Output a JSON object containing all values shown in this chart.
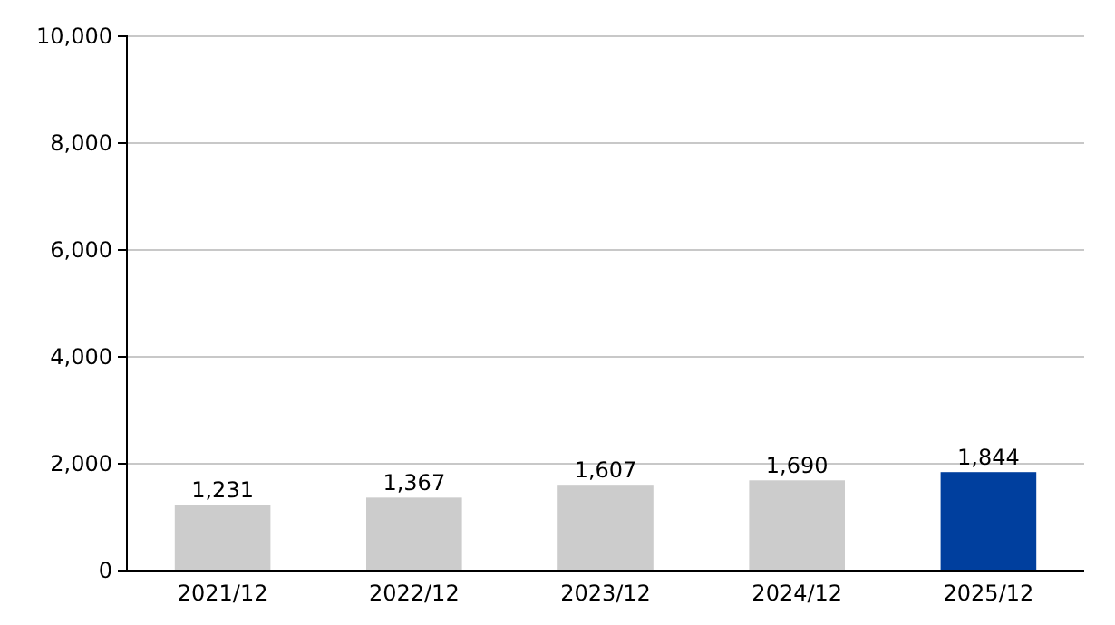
{
  "chart_data": {
    "type": "bar",
    "categories": [
      "2021/12",
      "2022/12",
      "2023/12",
      "2024/12",
      "2025/12"
    ],
    "values": [
      1231,
      1367,
      1607,
      1690,
      1844
    ],
    "colors": [
      "#cccccc",
      "#cccccc",
      "#cccccc",
      "#cccccc",
      "#003f9e"
    ],
    "ylim": [
      0,
      10000
    ],
    "yticks": [
      {
        "value": 0,
        "label": "0"
      },
      {
        "value": 2000,
        "label": "2,000"
      },
      {
        "value": 4000,
        "label": "4,000"
      },
      {
        "value": 6000,
        "label": "6,000"
      },
      {
        "value": 8000,
        "label": "8,000"
      },
      {
        "value": 10000,
        "label": "10,000"
      }
    ],
    "value_labels": [
      "1,231",
      "1,367",
      "1,607",
      "1,690",
      "1,844"
    ],
    "grid": "y"
  }
}
